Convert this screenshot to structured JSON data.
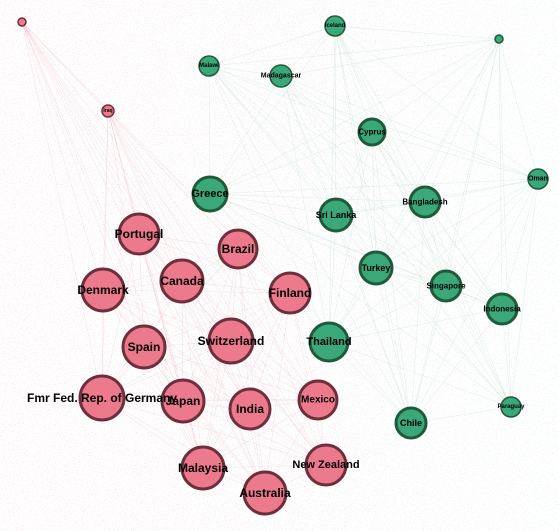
{
  "colors": {
    "cluster_red_fill": "#ec7a8c",
    "cluster_red_stroke": "#6e2f3c",
    "cluster_green_fill": "#3aa879",
    "cluster_green_stroke": "#1f5a3b",
    "edge_red": "#e79aa8",
    "edge_green": "#8fc9ad"
  },
  "nodes": [
    {
      "id": "tiny-red-1",
      "label": "",
      "group": "red"
    },
    {
      "id": "iraq",
      "label": "Iraq",
      "group": "red"
    },
    {
      "id": "iceland",
      "label": "Iceland",
      "group": "green"
    },
    {
      "id": "tiny-green-1",
      "label": "",
      "group": "green"
    },
    {
      "id": "malawi",
      "label": "Malawi",
      "group": "green"
    },
    {
      "id": "madagascar",
      "label": "Madagascar",
      "group": "green"
    },
    {
      "id": "cyprus",
      "label": "Cyprus",
      "group": "green"
    },
    {
      "id": "oman",
      "label": "Oman",
      "group": "green"
    },
    {
      "id": "greece",
      "label": "Greece",
      "group": "green"
    },
    {
      "id": "bangladesh",
      "label": "Bangladesh",
      "group": "green"
    },
    {
      "id": "sri-lanka",
      "label": "Sri Lanka",
      "group": "green"
    },
    {
      "id": "portugal",
      "label": "Portugal",
      "group": "red"
    },
    {
      "id": "brazil",
      "label": "Brazil",
      "group": "red"
    },
    {
      "id": "turkey",
      "label": "Turkey",
      "group": "green"
    },
    {
      "id": "singapore",
      "label": "Singapore",
      "group": "green"
    },
    {
      "id": "denmark",
      "label": "Denmark",
      "group": "red"
    },
    {
      "id": "canada",
      "label": "Canada",
      "group": "red"
    },
    {
      "id": "finland",
      "label": "Finland",
      "group": "red"
    },
    {
      "id": "indonesia",
      "label": "Indonesia",
      "group": "green"
    },
    {
      "id": "spain",
      "label": "Spain",
      "group": "red"
    },
    {
      "id": "switzerland",
      "label": "Switzerland",
      "group": "red"
    },
    {
      "id": "thailand",
      "label": "Thailand",
      "group": "green"
    },
    {
      "id": "fmr-germany",
      "label": "Fmr Fed. Rep. of Germany",
      "group": "red"
    },
    {
      "id": "japan",
      "label": "Japan",
      "group": "red"
    },
    {
      "id": "india",
      "label": "India",
      "group": "red"
    },
    {
      "id": "mexico",
      "label": "Mexico",
      "group": "red"
    },
    {
      "id": "paraguay",
      "label": "Paraguay",
      "group": "green"
    },
    {
      "id": "chile",
      "label": "Chile",
      "group": "green"
    },
    {
      "id": "malaysia",
      "label": "Malaysia",
      "group": "red"
    },
    {
      "id": "new-zealand",
      "label": "New Zealand",
      "group": "red"
    },
    {
      "id": "australia",
      "label": "Australia",
      "group": "red"
    }
  ]
}
